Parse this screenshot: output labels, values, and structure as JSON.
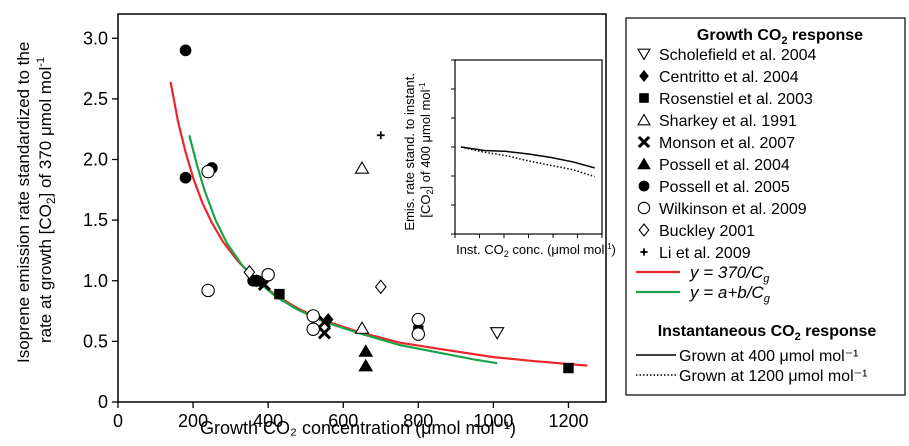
{
  "chart_data": {
    "type": "scatter",
    "xlabel": "Growth CO₂ concentration (μmol mol⁻¹)",
    "ylabel": "Isoprene emission rate standardized to the rate at growth [CO₂] of 370 μmol mol⁻¹",
    "xlim": [
      0,
      1300
    ],
    "ylim": [
      0,
      3.2
    ],
    "xticks": [
      "0",
      "200",
      "400",
      "600",
      "800",
      "1000",
      "1200"
    ],
    "yticks": [
      "0",
      "0.5",
      "1.0",
      "1.5",
      "2.0",
      "2.5",
      "3.0"
    ],
    "legend": {
      "title": "Growth CO₂ response",
      "title2": "Instantaneous CO₂ response",
      "position": "right"
    },
    "series": [
      {
        "name": "Scholefield et al. 2004",
        "marker": "triangle-down-open",
        "points": [
          [
            1010,
            0.57
          ]
        ]
      },
      {
        "name": "Centritto et al. 2004",
        "marker": "diamond-filled",
        "points": [
          [
            380,
            0.99
          ],
          [
            560,
            0.68
          ]
        ]
      },
      {
        "name": "Rosenstiel et al. 2003",
        "marker": "square-filled",
        "points": [
          [
            430,
            0.89
          ],
          [
            800,
            0.59
          ],
          [
            1200,
            0.28
          ]
        ]
      },
      {
        "name": "Sharkey et al. 1991",
        "marker": "triangle-up-open",
        "points": [
          [
            650,
            1.93
          ],
          [
            650,
            0.61
          ]
        ]
      },
      {
        "name": "Monson et al. 2007",
        "marker": "x",
        "points": [
          [
            380,
            1.0
          ],
          [
            390,
            0.97
          ],
          [
            550,
            0.57
          ],
          [
            550,
            0.66
          ]
        ]
      },
      {
        "name": "Possell et al. 2004",
        "marker": "triangle-up-filled",
        "points": [
          [
            660,
            0.42
          ],
          [
            660,
            0.3
          ]
        ]
      },
      {
        "name": "Possell et al. 2005",
        "marker": "circle-filled",
        "points": [
          [
            180,
            2.9
          ],
          [
            180,
            1.85
          ],
          [
            250,
            1.93
          ],
          [
            360,
            1.0
          ],
          [
            370,
            1.0
          ]
        ]
      },
      {
        "name": "Wilkinson et al. 2009",
        "marker": "circle-open",
        "points": [
          [
            240,
            0.92
          ],
          [
            240,
            1.9
          ],
          [
            400,
            1.05
          ],
          [
            520,
            0.6
          ],
          [
            520,
            0.71
          ],
          [
            800,
            0.68
          ],
          [
            800,
            0.56
          ]
        ]
      },
      {
        "name": "Buckley 2001",
        "marker": "diamond-open",
        "points": [
          [
            350,
            1.07
          ],
          [
            700,
            0.95
          ]
        ]
      },
      {
        "name": "Li et al. 2009",
        "marker": "plus",
        "points": [
          [
            700,
            2.2
          ]
        ]
      }
    ],
    "fits": [
      {
        "name_prefix": "y",
        "name_formula": " = 370/C",
        "name_sub": "g",
        "color": "#e8262c",
        "x": [
          140,
          160,
          180,
          200,
          225,
          250,
          280,
          320,
          370,
          420,
          480,
          550,
          650,
          750,
          850,
          1000,
          1100,
          1250
        ],
        "y": [
          2.64,
          2.31,
          2.06,
          1.85,
          1.64,
          1.48,
          1.32,
          1.16,
          1.0,
          0.88,
          0.77,
          0.67,
          0.57,
          0.49,
          0.44,
          0.37,
          0.34,
          0.3
        ]
      },
      {
        "name_prefix": "y",
        "name_formula": " = a+b/C",
        "name_sub": "g",
        "color": "#1aa34a",
        "x": [
          190,
          210,
          230,
          260,
          290,
          330,
          370,
          420,
          480,
          550,
          650,
          750,
          850,
          950,
          1010
        ],
        "y": [
          2.2,
          1.96,
          1.75,
          1.5,
          1.31,
          1.13,
          1.0,
          0.87,
          0.76,
          0.66,
          0.56,
          0.47,
          0.41,
          0.35,
          0.32
        ]
      }
    ],
    "inset": {
      "xlabel": "Inst. CO₂ conc. (μmol mol⁻¹)",
      "ylabel": "Emis. rate stand. to instant. [CO₂] of 400 μmol mol⁻¹",
      "xlim": [
        0,
        1
      ],
      "ylim": [
        0,
        1
      ],
      "series": [
        {
          "name": "Grown at 400 μmol mol⁻¹",
          "style": "solid",
          "x": [
            0.04,
            0.2,
            0.35,
            0.5,
            0.65,
            0.8,
            0.95
          ],
          "y": [
            0.5,
            0.48,
            0.475,
            0.46,
            0.44,
            0.415,
            0.38
          ]
        },
        {
          "name": "Grown at 1200 μmol mol⁻¹",
          "style": "dotted",
          "x": [
            0.04,
            0.2,
            0.35,
            0.5,
            0.65,
            0.8,
            0.95
          ],
          "y": [
            0.5,
            0.47,
            0.45,
            0.42,
            0.395,
            0.37,
            0.33
          ]
        }
      ]
    }
  }
}
